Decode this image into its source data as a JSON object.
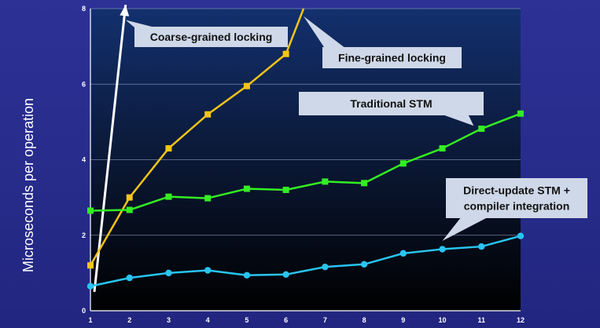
{
  "chart_data": {
    "type": "line",
    "ylabel": "Microseconds per operation",
    "xlabel": "",
    "x": [
      1,
      2,
      3,
      4,
      5,
      6,
      7,
      8,
      9,
      10,
      11,
      12
    ],
    "xlim": [
      1,
      12
    ],
    "ylim": [
      0,
      8
    ],
    "yticks": [
      0,
      2,
      4,
      6,
      8
    ],
    "grid": true,
    "series": [
      {
        "name": "Coarse-grained locking",
        "color": "#ffffff",
        "marker": "none",
        "style": "arrow",
        "points": [
          [
            1.1,
            0.5
          ],
          [
            1.9,
            8.1
          ]
        ]
      },
      {
        "name": "Fine-grained locking",
        "color": "#f5c518",
        "marker": "square",
        "points": [
          [
            1,
            1.2
          ],
          [
            2,
            3.0
          ],
          [
            3,
            4.3
          ],
          [
            4,
            5.2
          ],
          [
            5,
            5.95
          ],
          [
            6,
            6.8
          ],
          [
            6.45,
            8.0
          ]
        ]
      },
      {
        "name": "Traditional STM",
        "color": "#33ee22",
        "marker": "square",
        "points": [
          [
            1,
            2.65
          ],
          [
            2,
            2.67
          ],
          [
            3,
            3.02
          ],
          [
            4,
            2.98
          ],
          [
            5,
            3.23
          ],
          [
            6,
            3.2
          ],
          [
            7,
            3.42
          ],
          [
            8,
            3.38
          ],
          [
            9,
            3.9
          ],
          [
            10,
            4.3
          ],
          [
            11,
            4.82
          ],
          [
            12,
            5.22
          ]
        ]
      },
      {
        "name": "Direct-update STM + compiler integration",
        "color": "#29c4f0",
        "marker": "circle",
        "points": [
          [
            1,
            0.65
          ],
          [
            2,
            0.87
          ],
          [
            3,
            1.0
          ],
          [
            4,
            1.07
          ],
          [
            5,
            0.94
          ],
          [
            6,
            0.96
          ],
          [
            7,
            1.16
          ],
          [
            8,
            1.23
          ],
          [
            9,
            1.52
          ],
          [
            10,
            1.63
          ],
          [
            11,
            1.7
          ],
          [
            12,
            1.98
          ]
        ]
      }
    ],
    "annotations": [
      {
        "text_lines": [
          "Coarse-grained locking"
        ],
        "target": [
          1.9,
          7.7
        ]
      },
      {
        "text_lines": [
          "Fine-grained locking"
        ],
        "target": [
          6.45,
          7.8
        ]
      },
      {
        "text_lines": [
          "Traditional STM"
        ],
        "target": [
          10.8,
          4.9
        ]
      },
      {
        "text_lines": [
          "Direct-update STM +",
          "compiler integration"
        ],
        "target": [
          10,
          1.85
        ]
      }
    ]
  }
}
